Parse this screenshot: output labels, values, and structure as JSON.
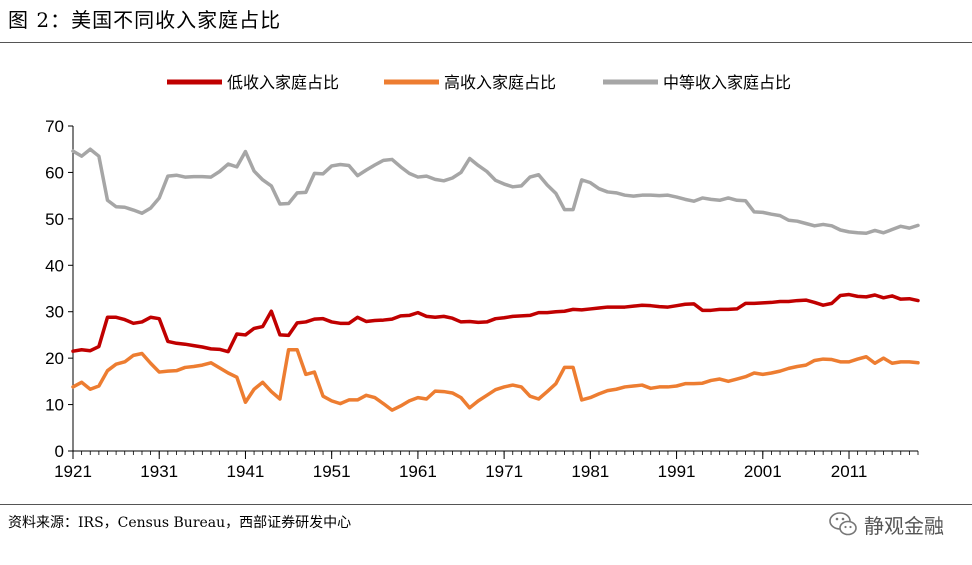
{
  "figure": {
    "title": "图 2：美国不同收入家庭占比",
    "source": "资料来源：IRS，Census Bureau，西部证券研发中心",
    "watermark": "静观金融"
  },
  "chart_data": {
    "type": "line",
    "title": "美国不同收入家庭占比",
    "xlabel": "",
    "ylabel": "",
    "xlim": [
      1921,
      2019
    ],
    "ylim": [
      0,
      70
    ],
    "yticks": [
      0,
      10,
      20,
      30,
      40,
      50,
      60,
      70
    ],
    "xticks": [
      1921,
      1931,
      1941,
      1951,
      1961,
      1971,
      1981,
      1991,
      2001,
      2011
    ],
    "legend_position": "top",
    "grid": false,
    "series": [
      {
        "name": "低收入家庭占比",
        "color": "#c00000",
        "points": [
          [
            1921,
            21.5
          ],
          [
            1922,
            21.8
          ],
          [
            1923,
            21.6
          ],
          [
            1924,
            22.5
          ],
          [
            1925,
            28.8
          ],
          [
            1926,
            28.8
          ],
          [
            1927,
            28.3
          ],
          [
            1928,
            27.5
          ],
          [
            1929,
            27.8
          ],
          [
            1930,
            28.8
          ],
          [
            1931,
            28.5
          ],
          [
            1932,
            23.6
          ],
          [
            1933,
            23.2
          ],
          [
            1934,
            23.0
          ],
          [
            1935,
            22.7
          ],
          [
            1936,
            22.4
          ],
          [
            1937,
            22.0
          ],
          [
            1938,
            21.9
          ],
          [
            1939,
            21.4
          ],
          [
            1940,
            25.2
          ],
          [
            1941,
            25.0
          ],
          [
            1942,
            26.4
          ],
          [
            1943,
            26.8
          ],
          [
            1944,
            30.1
          ],
          [
            1945,
            25.0
          ],
          [
            1946,
            24.9
          ],
          [
            1947,
            27.6
          ],
          [
            1948,
            27.8
          ],
          [
            1949,
            28.4
          ],
          [
            1950,
            28.5
          ],
          [
            1951,
            27.8
          ],
          [
            1952,
            27.5
          ],
          [
            1953,
            27.5
          ],
          [
            1954,
            28.8
          ],
          [
            1955,
            27.9
          ],
          [
            1956,
            28.1
          ],
          [
            1957,
            28.2
          ],
          [
            1958,
            28.4
          ],
          [
            1959,
            29.1
          ],
          [
            1960,
            29.2
          ],
          [
            1961,
            29.8
          ],
          [
            1962,
            29.0
          ],
          [
            1963,
            28.8
          ],
          [
            1964,
            29.0
          ],
          [
            1965,
            28.6
          ],
          [
            1966,
            27.8
          ],
          [
            1967,
            27.9
          ],
          [
            1968,
            27.7
          ],
          [
            1969,
            27.8
          ],
          [
            1970,
            28.5
          ],
          [
            1971,
            28.7
          ],
          [
            1972,
            29.0
          ],
          [
            1973,
            29.1
          ],
          [
            1974,
            29.2
          ],
          [
            1975,
            29.8
          ],
          [
            1976,
            29.8
          ],
          [
            1977,
            30.0
          ],
          [
            1978,
            30.1
          ],
          [
            1979,
            30.5
          ],
          [
            1980,
            30.4
          ],
          [
            1981,
            30.6
          ],
          [
            1982,
            30.8
          ],
          [
            1983,
            31.0
          ],
          [
            1984,
            31.0
          ],
          [
            1985,
            31.0
          ],
          [
            1986,
            31.2
          ],
          [
            1987,
            31.4
          ],
          [
            1988,
            31.3
          ],
          [
            1989,
            31.1
          ],
          [
            1990,
            31.0
          ],
          [
            1991,
            31.3
          ],
          [
            1992,
            31.6
          ],
          [
            1993,
            31.7
          ],
          [
            1994,
            30.3
          ],
          [
            1995,
            30.3
          ],
          [
            1996,
            30.5
          ],
          [
            1997,
            30.5
          ],
          [
            1998,
            30.6
          ],
          [
            1999,
            31.8
          ],
          [
            2000,
            31.8
          ],
          [
            2001,
            31.9
          ],
          [
            2002,
            32.0
          ],
          [
            2003,
            32.2
          ],
          [
            2004,
            32.2
          ],
          [
            2005,
            32.4
          ],
          [
            2006,
            32.5
          ],
          [
            2007,
            32.0
          ],
          [
            2008,
            31.4
          ],
          [
            2009,
            31.8
          ],
          [
            2010,
            33.5
          ],
          [
            2011,
            33.7
          ],
          [
            2012,
            33.3
          ],
          [
            2013,
            33.2
          ],
          [
            2014,
            33.6
          ],
          [
            2015,
            33.0
          ],
          [
            2016,
            33.4
          ],
          [
            2017,
            32.7
          ],
          [
            2018,
            32.8
          ],
          [
            2019,
            32.4
          ]
        ]
      },
      {
        "name": "高收入家庭占比",
        "color": "#ed7d31",
        "points": [
          [
            1921,
            13.8
          ],
          [
            1922,
            14.8
          ],
          [
            1923,
            13.3
          ],
          [
            1924,
            14.0
          ],
          [
            1925,
            17.3
          ],
          [
            1926,
            18.7
          ],
          [
            1927,
            19.2
          ],
          [
            1928,
            20.6
          ],
          [
            1929,
            21.0
          ],
          [
            1930,
            18.9
          ],
          [
            1931,
            17.0
          ],
          [
            1932,
            17.2
          ],
          [
            1933,
            17.3
          ],
          [
            1934,
            18.0
          ],
          [
            1935,
            18.2
          ],
          [
            1936,
            18.5
          ],
          [
            1937,
            19.0
          ],
          [
            1938,
            17.9
          ],
          [
            1939,
            16.8
          ],
          [
            1940,
            15.9
          ],
          [
            1941,
            10.5
          ],
          [
            1942,
            13.3
          ],
          [
            1943,
            14.8
          ],
          [
            1944,
            12.8
          ],
          [
            1945,
            11.2
          ],
          [
            1946,
            21.8
          ],
          [
            1947,
            21.8
          ],
          [
            1948,
            16.5
          ],
          [
            1949,
            17.0
          ],
          [
            1950,
            11.8
          ],
          [
            1951,
            10.8
          ],
          [
            1952,
            10.2
          ],
          [
            1953,
            11.0
          ],
          [
            1954,
            11.0
          ],
          [
            1955,
            12.0
          ],
          [
            1956,
            11.5
          ],
          [
            1957,
            10.2
          ],
          [
            1958,
            8.8
          ],
          [
            1959,
            9.7
          ],
          [
            1960,
            10.8
          ],
          [
            1961,
            11.5
          ],
          [
            1962,
            11.2
          ],
          [
            1963,
            12.9
          ],
          [
            1964,
            12.8
          ],
          [
            1965,
            12.5
          ],
          [
            1966,
            11.5
          ],
          [
            1967,
            9.3
          ],
          [
            1968,
            10.8
          ],
          [
            1969,
            12.0
          ],
          [
            1970,
            13.2
          ],
          [
            1971,
            13.8
          ],
          [
            1972,
            14.2
          ],
          [
            1973,
            13.8
          ],
          [
            1974,
            11.8
          ],
          [
            1975,
            11.2
          ],
          [
            1976,
            12.8
          ],
          [
            1977,
            14.5
          ],
          [
            1978,
            18.0
          ],
          [
            1979,
            18.0
          ],
          [
            1980,
            11.0
          ],
          [
            1981,
            11.5
          ],
          [
            1982,
            12.3
          ],
          [
            1983,
            13.0
          ],
          [
            1984,
            13.3
          ],
          [
            1985,
            13.8
          ],
          [
            1986,
            14.0
          ],
          [
            1987,
            14.2
          ],
          [
            1988,
            13.5
          ],
          [
            1989,
            13.8
          ],
          [
            1990,
            13.8
          ],
          [
            1991,
            14.0
          ],
          [
            1992,
            14.5
          ],
          [
            1993,
            14.5
          ],
          [
            1994,
            14.6
          ],
          [
            1995,
            15.2
          ],
          [
            1996,
            15.5
          ],
          [
            1997,
            15.0
          ],
          [
            1998,
            15.5
          ],
          [
            1999,
            16.0
          ],
          [
            2000,
            16.8
          ],
          [
            2001,
            16.5
          ],
          [
            2002,
            16.8
          ],
          [
            2003,
            17.2
          ],
          [
            2004,
            17.8
          ],
          [
            2005,
            18.2
          ],
          [
            2006,
            18.5
          ],
          [
            2007,
            19.5
          ],
          [
            2008,
            19.8
          ],
          [
            2009,
            19.7
          ],
          [
            2010,
            19.2
          ],
          [
            2011,
            19.2
          ],
          [
            2012,
            19.8
          ],
          [
            2013,
            20.3
          ],
          [
            2014,
            18.9
          ],
          [
            2015,
            20.0
          ],
          [
            2016,
            18.9
          ],
          [
            2017,
            19.2
          ],
          [
            2018,
            19.2
          ],
          [
            2019,
            19.0
          ]
        ]
      },
      {
        "name": "中等收入家庭占比",
        "color": "#a6a6a6",
        "points": [
          [
            1921,
            64.6
          ],
          [
            1922,
            63.5
          ],
          [
            1923,
            65.0
          ],
          [
            1924,
            63.5
          ],
          [
            1925,
            54.0
          ],
          [
            1926,
            52.6
          ],
          [
            1927,
            52.5
          ],
          [
            1928,
            51.9
          ],
          [
            1929,
            51.2
          ],
          [
            1930,
            52.3
          ],
          [
            1931,
            54.5
          ],
          [
            1932,
            59.2
          ],
          [
            1933,
            59.4
          ],
          [
            1934,
            59.0
          ],
          [
            1935,
            59.1
          ],
          [
            1936,
            59.1
          ],
          [
            1937,
            59.0
          ],
          [
            1938,
            60.2
          ],
          [
            1939,
            61.8
          ],
          [
            1940,
            61.2
          ],
          [
            1941,
            64.5
          ],
          [
            1942,
            60.3
          ],
          [
            1943,
            58.4
          ],
          [
            1944,
            57.1
          ],
          [
            1945,
            53.2
          ],
          [
            1946,
            53.3
          ],
          [
            1947,
            55.6
          ],
          [
            1948,
            55.7
          ],
          [
            1949,
            59.8
          ],
          [
            1950,
            59.7
          ],
          [
            1951,
            61.4
          ],
          [
            1952,
            61.7
          ],
          [
            1953,
            61.5
          ],
          [
            1954,
            59.3
          ],
          [
            1955,
            60.5
          ],
          [
            1956,
            61.6
          ],
          [
            1957,
            62.6
          ],
          [
            1958,
            62.8
          ],
          [
            1959,
            61.2
          ],
          [
            1960,
            59.8
          ],
          [
            1961,
            59.0
          ],
          [
            1962,
            59.2
          ],
          [
            1963,
            58.5
          ],
          [
            1964,
            58.2
          ],
          [
            1965,
            58.8
          ],
          [
            1966,
            60.0
          ],
          [
            1967,
            63.0
          ],
          [
            1968,
            61.5
          ],
          [
            1969,
            60.2
          ],
          [
            1970,
            58.3
          ],
          [
            1971,
            57.5
          ],
          [
            1972,
            56.9
          ],
          [
            1973,
            57.1
          ],
          [
            1974,
            59.0
          ],
          [
            1975,
            59.5
          ],
          [
            1976,
            57.3
          ],
          [
            1977,
            55.5
          ],
          [
            1978,
            52.0
          ],
          [
            1979,
            52.0
          ],
          [
            1980,
            58.4
          ],
          [
            1981,
            57.8
          ],
          [
            1982,
            56.5
          ],
          [
            1983,
            55.8
          ],
          [
            1984,
            55.6
          ],
          [
            1985,
            55.1
          ],
          [
            1986,
            54.9
          ],
          [
            1987,
            55.1
          ],
          [
            1988,
            55.1
          ],
          [
            1989,
            55.0
          ],
          [
            1990,
            55.1
          ],
          [
            1991,
            54.7
          ],
          [
            1992,
            54.2
          ],
          [
            1993,
            53.8
          ],
          [
            1994,
            54.5
          ],
          [
            1995,
            54.2
          ],
          [
            1996,
            54.0
          ],
          [
            1997,
            54.5
          ],
          [
            1998,
            54.0
          ],
          [
            1999,
            53.9
          ],
          [
            2000,
            51.5
          ],
          [
            2001,
            51.4
          ],
          [
            2002,
            51.0
          ],
          [
            2003,
            50.7
          ],
          [
            2004,
            49.7
          ],
          [
            2005,
            49.5
          ],
          [
            2006,
            49.0
          ],
          [
            2007,
            48.5
          ],
          [
            2008,
            48.8
          ],
          [
            2009,
            48.5
          ],
          [
            2010,
            47.6
          ],
          [
            2011,
            47.2
          ],
          [
            2012,
            47.0
          ],
          [
            2013,
            46.9
          ],
          [
            2014,
            47.5
          ],
          [
            2015,
            47.0
          ],
          [
            2016,
            47.7
          ],
          [
            2017,
            48.4
          ],
          [
            2018,
            48.0
          ],
          [
            2019,
            48.6
          ]
        ]
      }
    ]
  }
}
